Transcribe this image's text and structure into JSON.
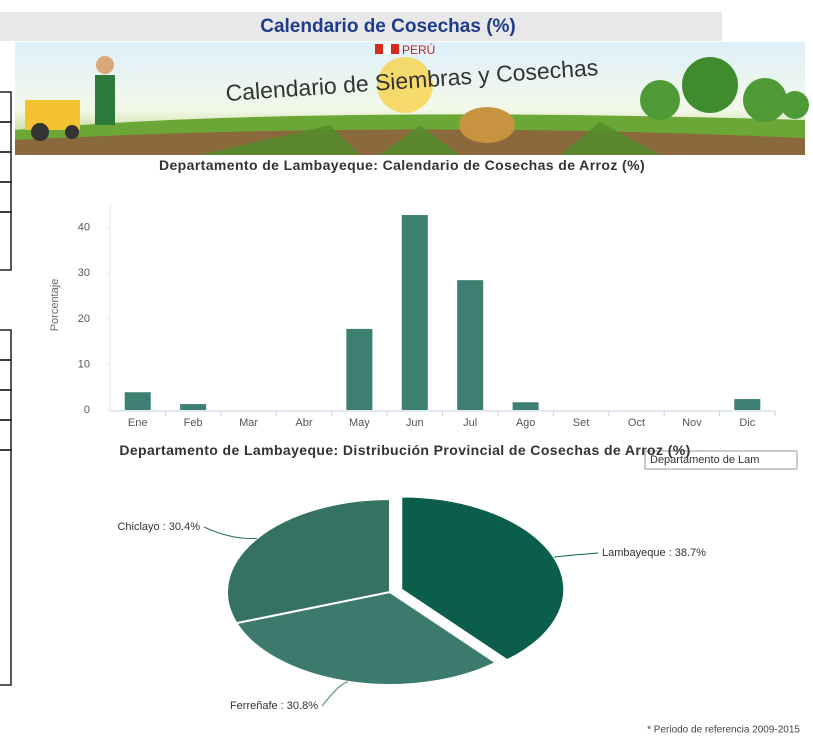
{
  "header": {
    "title": "Calendario de  Cosechas (%)"
  },
  "banner": {
    "country": "PERÚ",
    "title": "Calendario de Siembras y Cosechas"
  },
  "chart_data": [
    {
      "type": "bar",
      "title": "Departamento de Lambayeque: Calendario de Cosechas de Arroz (%)",
      "y_label": "Porcentaje",
      "categories": [
        "Ene",
        "Feb",
        "Mar",
        "Abr",
        "May",
        "Jun",
        "Jul",
        "Ago",
        "Set",
        "Oct",
        "Nov",
        "Dic"
      ],
      "values": [
        3.9,
        1.3,
        0,
        0,
        17.8,
        42.8,
        28.5,
        1.7,
        0,
        0,
        0,
        2.4
      ],
      "color": "#3d7f70",
      "ylim": [
        0,
        45
      ],
      "yticks": [
        0,
        10,
        20,
        30,
        40
      ]
    },
    {
      "type": "pie",
      "title": "Departamento de Lambayeque: Distribución Provincial de Cosechas de Arroz (%)",
      "values": [
        38.7,
        30.8,
        30.4
      ],
      "value_labels": [
        "Lambayeque : 38.7%",
        "Ferreñafe : 30.8%",
        "Chiclayo : 30.4%"
      ],
      "colors": [
        "#0b5e4c",
        "#3b7a6d",
        "#357263"
      ]
    }
  ],
  "tooltip": "Departamento de Lam",
  "footnote": "* Periodo de referencia 2009-2015"
}
